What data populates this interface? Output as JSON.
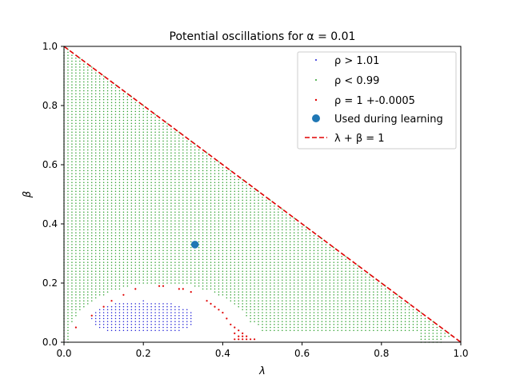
{
  "chart_data": {
    "type": "scatter",
    "title": "Potential oscillations for α = 0.01",
    "xlabel": "λ",
    "ylabel": "β",
    "xlim": [
      0,
      1
    ],
    "ylim": [
      0,
      1
    ],
    "xticks": [
      "0.0",
      "0.2",
      "0.4",
      "0.6",
      "0.8",
      "1.0"
    ],
    "yticks": [
      "0.0",
      "0.2",
      "0.4",
      "0.6",
      "0.8",
      "1.0"
    ],
    "grid": false,
    "legend_position": "top-right",
    "series": [
      {
        "name": "ρ > 1.01",
        "kind": "points",
        "color": "#1f1fd6",
        "region": "ellipse",
        "center": [
          0.2,
          0.08
        ],
        "radius": [
          0.13,
          0.06
        ],
        "x_range": [
          0.07,
          0.32
        ],
        "y_range": [
          0.04,
          0.14
        ],
        "grid_step": 0.01
      },
      {
        "name": "ρ < 0.99",
        "kind": "points",
        "color": "#2ca02c",
        "region": "triangle-excluding-arch",
        "x_range": [
          0.0,
          1.0
        ],
        "y_range": [
          0.0,
          1.0
        ],
        "grid_step": 0.01
      },
      {
        "name": "ρ = 1 +-0.0005",
        "kind": "points",
        "color": "#e00000",
        "points": [
          [
            0.03,
            0.05
          ],
          [
            0.07,
            0.09
          ],
          [
            0.1,
            0.12
          ],
          [
            0.12,
            0.14
          ],
          [
            0.15,
            0.16
          ],
          [
            0.18,
            0.18
          ],
          [
            0.24,
            0.19
          ],
          [
            0.25,
            0.19
          ],
          [
            0.29,
            0.18
          ],
          [
            0.3,
            0.18
          ],
          [
            0.32,
            0.17
          ],
          [
            0.36,
            0.14
          ],
          [
            0.37,
            0.13
          ],
          [
            0.38,
            0.12
          ],
          [
            0.39,
            0.11
          ],
          [
            0.4,
            0.1
          ],
          [
            0.41,
            0.08
          ],
          [
            0.42,
            0.06
          ],
          [
            0.43,
            0.05
          ],
          [
            0.44,
            0.04
          ],
          [
            0.45,
            0.03
          ],
          [
            0.46,
            0.02
          ],
          [
            0.47,
            0.01
          ],
          [
            0.44,
            0.02
          ],
          [
            0.45,
            0.02
          ],
          [
            0.43,
            0.03
          ],
          [
            0.46,
            0.01
          ],
          [
            0.45,
            0.01
          ],
          [
            0.44,
            0.01
          ],
          [
            0.43,
            0.01
          ],
          [
            0.48,
            0.01
          ]
        ]
      },
      {
        "name": "Used during learning",
        "kind": "marker",
        "color": "#1f77b4",
        "points": [
          [
            0.33,
            0.33
          ]
        ]
      },
      {
        "name": "λ + β = 1",
        "kind": "line",
        "color": "#e00000",
        "dash": true,
        "points": [
          [
            0,
            1
          ],
          [
            1,
            0
          ]
        ]
      }
    ]
  }
}
